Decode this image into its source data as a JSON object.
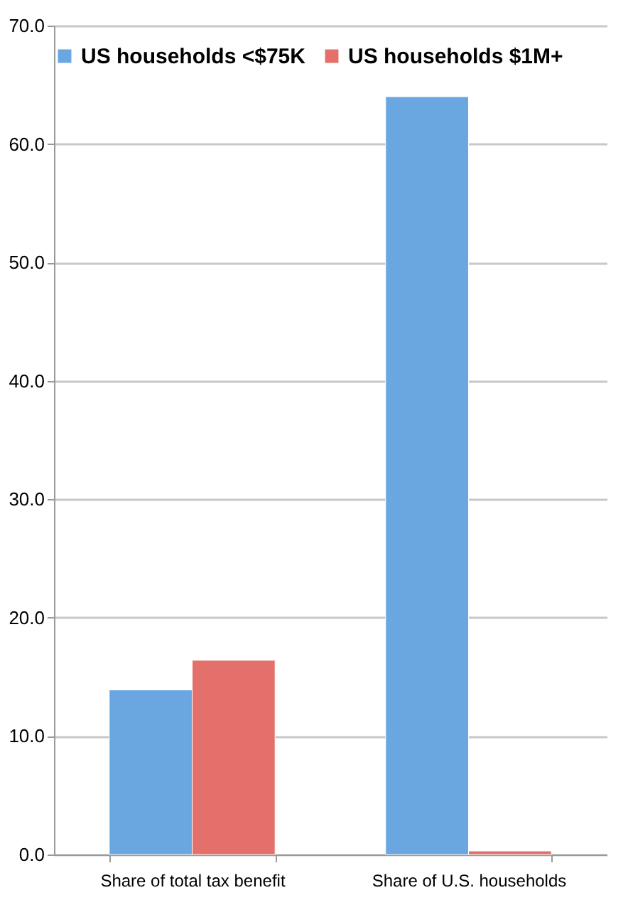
{
  "chart_data": {
    "type": "bar",
    "categories": [
      "Share of total tax benefit",
      "Share of U.S. households"
    ],
    "series": [
      {
        "name": "US households <$75K",
        "color": "#6aa6e0",
        "values": [
          13.9,
          64.0
        ]
      },
      {
        "name": "US households $1M+",
        "color": "#e4706b",
        "values": [
          16.4,
          0.3
        ]
      }
    ],
    "ylim": [
      0,
      70
    ],
    "yticks": [
      {
        "value": 0,
        "label": "0.0"
      },
      {
        "value": 10,
        "label": "10.0"
      },
      {
        "value": 20,
        "label": "20.0"
      },
      {
        "value": 30,
        "label": "30.0"
      },
      {
        "value": 40,
        "label": "40.0"
      },
      {
        "value": 50,
        "label": "50.0"
      },
      {
        "value": 60,
        "label": "60.0"
      },
      {
        "value": 70,
        "label": "70.0"
      }
    ],
    "grid": "y",
    "legend": "top"
  }
}
